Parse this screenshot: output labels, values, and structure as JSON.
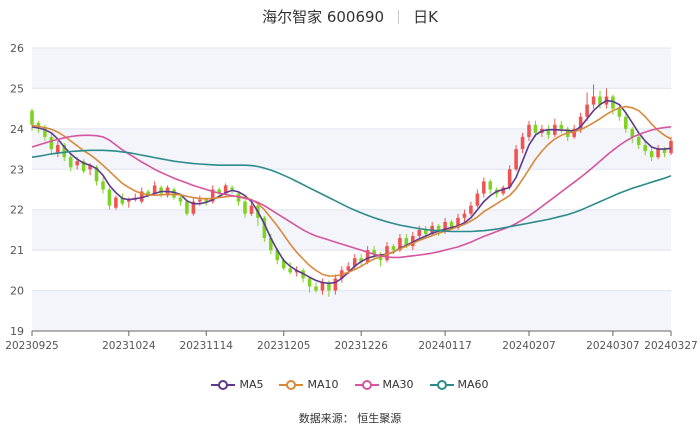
{
  "title": {
    "name": "海尔智家 600690",
    "period": "日K"
  },
  "source": {
    "label": "数据来源：",
    "value": "恒生聚源"
  },
  "colors": {
    "up": "#ef5350",
    "down": "#7ed321",
    "ma5": "#5b3a8e",
    "ma10": "#d9883a",
    "ma30": "#d6549e",
    "ma60": "#2e8b8b",
    "grid": "#e0e4f0",
    "band": "#f3f5fb"
  },
  "chart_data": {
    "type": "candlestick",
    "title": "海尔智家 600690 日K",
    "ylim": [
      19,
      26
    ],
    "yticks": [
      19,
      20,
      21,
      22,
      23,
      24,
      25,
      26
    ],
    "xticks": [
      "20230925",
      "20231024",
      "20231114",
      "20231205",
      "20231226",
      "20240117",
      "20240207",
      "20240307",
      "20240327"
    ],
    "tick_index": [
      0,
      15,
      27,
      39,
      51,
      64,
      77,
      90,
      99
    ],
    "n": 100,
    "legend": [
      "MA5",
      "MA10",
      "MA30",
      "MA60"
    ],
    "candles": [
      [
        24.45,
        24.1,
        24.5,
        23.95
      ],
      [
        24.15,
        24.05,
        24.2,
        23.9
      ],
      [
        24.05,
        23.8,
        24.1,
        23.7
      ],
      [
        23.8,
        23.5,
        23.9,
        23.4
      ],
      [
        23.4,
        23.6,
        23.7,
        23.3
      ],
      [
        23.6,
        23.3,
        23.65,
        23.2
      ],
      [
        23.3,
        23.05,
        23.35,
        22.95
      ],
      [
        23.1,
        23.2,
        23.3,
        23.0
      ],
      [
        23.2,
        22.95,
        23.25,
        22.9
      ],
      [
        23.0,
        23.1,
        23.15,
        22.85
      ],
      [
        23.05,
        22.7,
        23.1,
        22.6
      ],
      [
        22.7,
        22.5,
        22.8,
        22.4
      ],
      [
        22.5,
        22.1,
        22.55,
        22.0
      ],
      [
        22.05,
        22.3,
        22.35,
        22.0
      ],
      [
        22.3,
        22.15,
        22.4,
        22.1
      ],
      [
        22.2,
        22.25,
        22.3,
        22.05
      ],
      [
        22.25,
        22.3,
        22.4,
        22.2
      ],
      [
        22.2,
        22.45,
        22.55,
        22.15
      ],
      [
        22.45,
        22.35,
        22.5,
        22.3
      ],
      [
        22.4,
        22.6,
        22.7,
        22.35
      ],
      [
        22.55,
        22.4,
        22.6,
        22.3
      ],
      [
        22.35,
        22.55,
        22.6,
        22.3
      ],
      [
        22.5,
        22.3,
        22.55,
        22.25
      ],
      [
        22.3,
        22.2,
        22.35,
        22.1
      ],
      [
        22.2,
        21.9,
        22.25,
        21.85
      ],
      [
        21.9,
        22.2,
        22.3,
        21.85
      ],
      [
        22.2,
        22.25,
        22.35,
        22.1
      ],
      [
        22.25,
        22.2,
        22.3,
        22.1
      ],
      [
        22.2,
        22.5,
        22.6,
        22.15
      ],
      [
        22.5,
        22.4,
        22.55,
        22.3
      ],
      [
        22.4,
        22.6,
        22.65,
        22.35
      ],
      [
        22.55,
        22.5,
        22.6,
        22.4
      ],
      [
        22.4,
        22.2,
        22.45,
        22.1
      ],
      [
        22.2,
        21.9,
        22.25,
        21.8
      ],
      [
        21.9,
        22.1,
        22.2,
        21.85
      ],
      [
        22.1,
        21.8,
        22.15,
        21.6
      ],
      [
        21.8,
        21.3,
        21.85,
        21.2
      ],
      [
        21.3,
        21.0,
        21.4,
        20.9
      ],
      [
        21.0,
        20.75,
        21.05,
        20.65
      ],
      [
        20.75,
        20.55,
        20.8,
        20.5
      ],
      [
        20.55,
        20.45,
        20.7,
        20.4
      ],
      [
        20.45,
        20.5,
        20.6,
        20.35
      ],
      [
        20.5,
        20.3,
        20.55,
        20.2
      ],
      [
        20.3,
        20.1,
        20.35,
        19.95
      ],
      [
        20.1,
        20.0,
        20.2,
        19.95
      ],
      [
        20.0,
        20.2,
        20.3,
        19.9
      ],
      [
        20.2,
        20.0,
        20.25,
        19.85
      ],
      [
        20.0,
        20.3,
        20.4,
        19.9
      ],
      [
        20.3,
        20.5,
        20.6,
        20.2
      ],
      [
        20.5,
        20.6,
        20.7,
        20.4
      ],
      [
        20.6,
        20.8,
        20.9,
        20.5
      ],
      [
        20.8,
        20.7,
        20.9,
        20.6
      ],
      [
        20.7,
        21.0,
        21.1,
        20.65
      ],
      [
        21.0,
        20.9,
        21.1,
        20.8
      ],
      [
        20.9,
        20.75,
        20.95,
        20.6
      ],
      [
        20.75,
        21.1,
        21.2,
        20.7
      ],
      [
        21.1,
        21.0,
        21.15,
        20.9
      ],
      [
        21.0,
        21.3,
        21.4,
        20.95
      ],
      [
        21.3,
        21.1,
        21.4,
        21.05
      ],
      [
        21.1,
        21.35,
        21.45,
        21.0
      ],
      [
        21.35,
        21.5,
        21.6,
        21.3
      ],
      [
        21.5,
        21.4,
        21.6,
        21.3
      ],
      [
        21.4,
        21.6,
        21.7,
        21.35
      ],
      [
        21.6,
        21.45,
        21.65,
        21.35
      ],
      [
        21.45,
        21.7,
        21.8,
        21.4
      ],
      [
        21.7,
        21.55,
        21.75,
        21.5
      ],
      [
        21.55,
        21.8,
        21.9,
        21.5
      ],
      [
        21.8,
        21.9,
        22.0,
        21.7
      ],
      [
        21.9,
        22.1,
        22.2,
        21.85
      ],
      [
        22.1,
        22.4,
        22.5,
        22.05
      ],
      [
        22.4,
        22.7,
        22.8,
        22.3
      ],
      [
        22.7,
        22.5,
        22.75,
        22.4
      ],
      [
        22.5,
        22.4,
        22.55,
        22.3
      ],
      [
        22.4,
        22.55,
        22.6,
        22.35
      ],
      [
        22.55,
        23.0,
        23.1,
        22.5
      ],
      [
        23.0,
        23.5,
        23.6,
        22.95
      ],
      [
        23.5,
        23.8,
        23.9,
        23.4
      ],
      [
        23.8,
        24.1,
        24.2,
        23.7
      ],
      [
        24.1,
        23.9,
        24.2,
        23.8
      ],
      [
        23.9,
        24.0,
        24.1,
        23.8
      ],
      [
        24.0,
        23.85,
        24.1,
        23.75
      ],
      [
        23.85,
        24.1,
        24.25,
        23.8
      ],
      [
        24.1,
        24.0,
        24.2,
        23.9
      ],
      [
        24.0,
        23.8,
        24.05,
        23.7
      ],
      [
        23.8,
        24.0,
        24.1,
        23.75
      ],
      [
        24.0,
        24.3,
        24.4,
        23.9
      ],
      [
        24.3,
        24.6,
        24.9,
        24.2
      ],
      [
        24.6,
        24.8,
        25.1,
        24.5
      ],
      [
        24.8,
        24.6,
        24.95,
        24.5
      ],
      [
        24.6,
        24.8,
        25.0,
        24.5
      ],
      [
        24.8,
        24.5,
        24.85,
        24.35
      ],
      [
        24.5,
        24.3,
        24.6,
        24.2
      ],
      [
        24.3,
        24.0,
        24.4,
        23.9
      ],
      [
        24.0,
        23.8,
        24.05,
        23.65
      ],
      [
        23.8,
        23.6,
        23.9,
        23.5
      ],
      [
        23.6,
        23.45,
        23.7,
        23.35
      ],
      [
        23.45,
        23.3,
        23.55,
        23.2
      ],
      [
        23.3,
        23.5,
        23.6,
        23.25
      ],
      [
        23.5,
        23.4,
        23.55,
        23.3
      ],
      [
        23.4,
        23.7,
        23.8,
        23.35
      ]
    ],
    "series": [
      {
        "name": "MA5",
        "values": [
          24.05,
          24.02,
          23.98,
          23.9,
          23.75,
          23.55,
          23.38,
          23.25,
          23.15,
          23.1,
          23.02,
          22.85,
          22.6,
          22.42,
          22.28,
          22.25,
          22.27,
          22.3,
          22.35,
          22.4,
          22.45,
          22.45,
          22.43,
          22.38,
          22.22,
          22.15,
          22.15,
          22.18,
          22.25,
          22.33,
          22.42,
          22.48,
          22.44,
          22.35,
          22.2,
          21.95,
          21.65,
          21.3,
          21.0,
          20.75,
          20.6,
          20.5,
          20.42,
          20.33,
          20.25,
          20.2,
          20.18,
          20.2,
          20.3,
          20.45,
          20.6,
          20.72,
          20.8,
          20.85,
          20.88,
          20.9,
          20.95,
          21.05,
          21.12,
          21.2,
          21.28,
          21.35,
          21.42,
          21.47,
          21.52,
          21.56,
          21.6,
          21.68,
          21.8,
          22.0,
          22.2,
          22.35,
          22.45,
          22.5,
          22.55,
          22.8,
          23.2,
          23.6,
          23.85,
          23.95,
          23.98,
          23.98,
          23.97,
          23.96,
          23.95,
          24.05,
          24.25,
          24.45,
          24.6,
          24.7,
          24.68,
          24.6,
          24.4,
          24.15,
          23.9,
          23.7,
          23.55,
          23.5,
          23.5,
          23.52
        ]
      },
      {
        "name": "MA10",
        "values": [
          24.08,
          24.06,
          24.03,
          23.99,
          23.92,
          23.82,
          23.7,
          23.58,
          23.46,
          23.36,
          23.24,
          23.1,
          22.95,
          22.8,
          22.65,
          22.55,
          22.46,
          22.4,
          22.37,
          22.36,
          22.37,
          22.38,
          22.38,
          22.37,
          22.33,
          22.3,
          22.28,
          22.27,
          22.28,
          22.3,
          22.32,
          22.34,
          22.33,
          22.3,
          22.25,
          22.15,
          22.0,
          21.8,
          21.6,
          21.38,
          21.15,
          20.95,
          20.78,
          20.62,
          20.5,
          20.4,
          20.36,
          20.36,
          20.4,
          20.45,
          20.52,
          20.6,
          20.7,
          20.78,
          20.84,
          20.9,
          20.96,
          21.03,
          21.1,
          21.17,
          21.24,
          21.3,
          21.36,
          21.42,
          21.47,
          21.52,
          21.58,
          21.64,
          21.72,
          21.82,
          21.95,
          22.05,
          22.15,
          22.25,
          22.35,
          22.52,
          22.75,
          23.0,
          23.25,
          23.45,
          23.62,
          23.75,
          23.84,
          23.9,
          23.93,
          23.98,
          24.06,
          24.15,
          24.25,
          24.36,
          24.45,
          24.52,
          24.55,
          24.52,
          24.45,
          24.3,
          24.12,
          23.96,
          23.84,
          23.75
        ]
      },
      {
        "name": "MA30",
        "values": [
          23.55,
          23.6,
          23.65,
          23.7,
          23.74,
          23.78,
          23.81,
          23.83,
          23.84,
          23.84,
          23.83,
          23.8,
          23.72,
          23.6,
          23.48,
          23.38,
          23.28,
          23.18,
          23.09,
          23.0,
          22.92,
          22.85,
          22.78,
          22.72,
          22.66,
          22.6,
          22.55,
          22.5,
          22.45,
          22.41,
          22.38,
          22.35,
          22.32,
          22.28,
          22.24,
          22.18,
          22.1,
          22.0,
          21.9,
          21.8,
          21.7,
          21.6,
          21.5,
          21.42,
          21.35,
          21.3,
          21.25,
          21.2,
          21.15,
          21.1,
          21.05,
          21.0,
          20.95,
          20.9,
          20.86,
          20.83,
          20.82,
          20.82,
          20.84,
          20.86,
          20.88,
          20.9,
          20.93,
          20.96,
          21.0,
          21.04,
          21.08,
          21.14,
          21.2,
          21.27,
          21.34,
          21.4,
          21.46,
          21.52,
          21.58,
          21.66,
          21.75,
          21.85,
          21.96,
          22.08,
          22.2,
          22.32,
          22.44,
          22.56,
          22.68,
          22.8,
          22.93,
          23.06,
          23.2,
          23.34,
          23.47,
          23.59,
          23.7,
          23.79,
          23.86,
          23.92,
          23.97,
          24.01,
          24.03,
          24.05
        ]
      },
      {
        "name": "MA60",
        "values": [
          23.3,
          23.32,
          23.35,
          23.38,
          23.4,
          23.42,
          23.44,
          23.45,
          23.46,
          23.47,
          23.47,
          23.47,
          23.46,
          23.45,
          23.43,
          23.41,
          23.38,
          23.35,
          23.32,
          23.29,
          23.26,
          23.23,
          23.2,
          23.18,
          23.16,
          23.14,
          23.13,
          23.12,
          23.11,
          23.1,
          23.1,
          23.1,
          23.1,
          23.1,
          23.09,
          23.07,
          23.03,
          22.98,
          22.92,
          22.85,
          22.78,
          22.7,
          22.62,
          22.54,
          22.46,
          22.38,
          22.3,
          22.22,
          22.14,
          22.06,
          21.99,
          21.92,
          21.86,
          21.8,
          21.75,
          21.7,
          21.66,
          21.62,
          21.59,
          21.56,
          21.53,
          21.51,
          21.49,
          21.48,
          21.47,
          21.46,
          21.46,
          21.46,
          21.46,
          21.47,
          21.48,
          21.5,
          21.52,
          21.55,
          21.58,
          21.61,
          21.64,
          21.67,
          21.7,
          21.73,
          21.76,
          21.8,
          21.84,
          21.88,
          21.93,
          21.99,
          22.06,
          22.13,
          22.2,
          22.27,
          22.34,
          22.41,
          22.47,
          22.53,
          22.58,
          22.63,
          22.68,
          22.73,
          22.78,
          22.84
        ]
      }
    ]
  }
}
